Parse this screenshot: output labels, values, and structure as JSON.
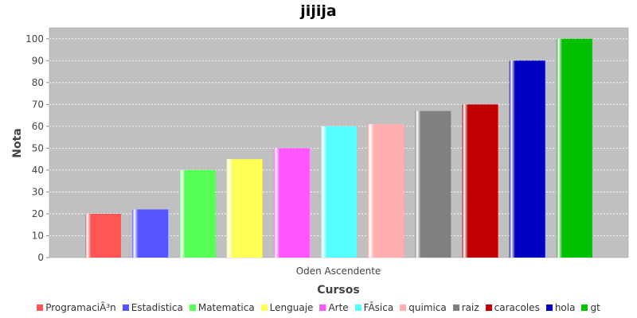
{
  "chart_data": {
    "type": "bar",
    "title": "jijija",
    "xlabel": "Cursos",
    "ylabel": "Nota",
    "categories": [
      "Oden Ascendente"
    ],
    "ylim": [
      0,
      105
    ],
    "yticks": [
      0,
      10,
      20,
      30,
      40,
      50,
      60,
      70,
      80,
      90,
      100
    ],
    "grid": true,
    "legend_position": "bottom",
    "series": [
      {
        "name": "ProgramaciÃ³n",
        "value": 20,
        "color": "#ff5555"
      },
      {
        "name": "Estadistica",
        "value": 22,
        "color": "#5555ff"
      },
      {
        "name": "Matematica",
        "value": 40,
        "color": "#55ff55"
      },
      {
        "name": "Lenguaje",
        "value": 45,
        "color": "#ffff55"
      },
      {
        "name": "Arte",
        "value": 50,
        "color": "#ff55ff"
      },
      {
        "name": "FÃ­sica",
        "value": 60,
        "color": "#55ffff"
      },
      {
        "name": "quimica",
        "value": 61,
        "color": "#ffafaf"
      },
      {
        "name": "raiz",
        "value": 67,
        "color": "#808080"
      },
      {
        "name": "caracoles",
        "value": 70,
        "color": "#c00000"
      },
      {
        "name": "hola",
        "value": 90,
        "color": "#0000c0"
      },
      {
        "name": "gt",
        "value": 100,
        "color": "#00c000"
      }
    ]
  }
}
